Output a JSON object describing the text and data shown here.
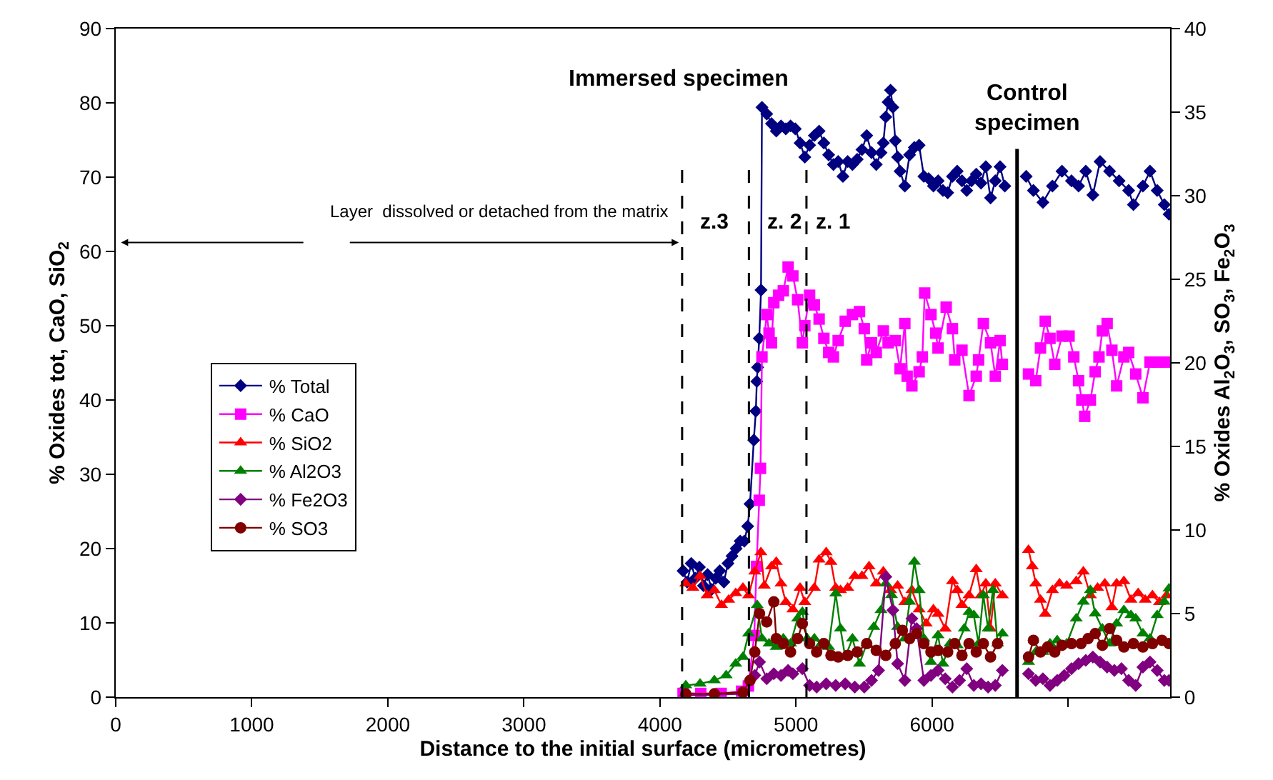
{
  "chart_data": {
    "type": "line",
    "xlabel": "Distance to the initial surface (micrometres)",
    "ylabel": "% Oxides tot, CaO, SiO$_{2}$",
    "y2label": "% Oxides Al$_{2}$O$_{3}$, SO$_{3}$, Fe$_{2}$O$_{3}$",
    "xlim": [
      0,
      7750
    ],
    "xticks": [
      0,
      1000,
      2000,
      3000,
      4000,
      5000,
      6000,
      {
        "value": 7000,
        "label": null
      }
    ],
    "ylim": [
      0,
      90
    ],
    "yticks": [
      0,
      10,
      20,
      30,
      40,
      50,
      60,
      70,
      80,
      90
    ],
    "y2lim": [
      0,
      40
    ],
    "y2ticks": [
      0,
      5,
      10,
      15,
      20,
      25,
      30,
      35,
      40
    ],
    "legend": "left",
    "line_style": "solid",
    "annotations": [
      "Layer  dissolved or detached from the matrix",
      "z.3",
      "z. 2",
      "z. 1",
      "Immersed specimen",
      "Control\nspecimen"
    ],
    "ref_lines": [
      {
        "axis": "x",
        "value": 4163,
        "line_style": "dashed",
        "color": "#000000"
      },
      {
        "axis": "x",
        "value": 4654,
        "line_style": "dashed",
        "color": "#000000"
      },
      {
        "axis": "x",
        "value": 5077,
        "line_style": "dashed",
        "color": "#000000"
      },
      {
        "axis": "x",
        "value": 6625,
        "line_style": "solid",
        "color": "#000000"
      }
    ],
    "series": [
      {
        "name": "% Total",
        "color": "#000080",
        "marker": "diamond",
        "x": [
          4170,
          4200,
          4230,
          4260,
          4290,
          4320,
          4350,
          4380,
          4410,
          4440,
          4470,
          4500,
          4530,
          4560,
          4590,
          4620,
          4645,
          4662,
          4690,
          4705,
          4712,
          4718,
          4730,
          4743,
          4750,
          4785,
          4820,
          4855,
          4890,
          4925,
          4960,
          4995,
          5030,
          5065,
          5100,
          5135,
          5170,
          5205,
          5240,
          5275,
          5310,
          5345,
          5380,
          5415,
          5450,
          5485,
          5520,
          5555,
          5590,
          5625,
          5642,
          5660,
          5677,
          5695,
          5712,
          5730,
          5747,
          5765,
          5800,
          5835,
          5870,
          5905,
          5940,
          5975,
          6010,
          6045,
          6080,
          6115,
          6150,
          6185,
          6220,
          6255,
          6290,
          6325,
          6360,
          6395,
          6430,
          6465,
          6500,
          6535,
          6600,
          6692,
          6745,
          6815,
          6885,
          6955,
          7025,
          7077,
          7130,
          7182,
          7235,
          7305,
          7375,
          7445,
          7480,
          7550,
          7602,
          7655,
          7707,
          7742
        ],
        "values": [
          17,
          15.5,
          18,
          16,
          17.5,
          15,
          16.5,
          14.5,
          16,
          17,
          15.5,
          18,
          19,
          20,
          21,
          21,
          23,
          26,
          34.6,
          38.5,
          42.5,
          44.4,
          48.3,
          54.8,
          79.4,
          78.5,
          77.2,
          76.2,
          76.9,
          76.5,
          76.9,
          76.5,
          74.6,
          72.7,
          74.3,
          75.6,
          76.2,
          74.6,
          73,
          71.7,
          72.1,
          70.1,
          72.1,
          71.7,
          72.4,
          73.7,
          75.6,
          73.3,
          71.7,
          73.3,
          74.6,
          78.1,
          80.1,
          81.7,
          79.4,
          74.9,
          72.7,
          70.8,
          68.8,
          73,
          74,
          74.3,
          70.1,
          69.8,
          68.8,
          69.5,
          68.2,
          67.9,
          70.1,
          70.8,
          69.5,
          68.2,
          69.5,
          70.4,
          69.2,
          71.4,
          67.2,
          69.5,
          71.4,
          68.8,
          null,
          70.1,
          68.2,
          66.6,
          68.8,
          70.8,
          69.5,
          68.8,
          70.8,
          67.6,
          72.1,
          70.8,
          69.5,
          68.2,
          66.3,
          68.8,
          70.8,
          68.2,
          66.3,
          65
        ]
      },
      {
        "name": "% CaO",
        "color": "#ff00ff",
        "marker": "square",
        "x": [
          4170,
          4300,
          4450,
          4600,
          4650,
          4693,
          4710,
          4730,
          4739,
          4750,
          4785,
          4802,
          4820,
          4837,
          4872,
          4907,
          4942,
          4977,
          5012,
          5047,
          5065,
          5100,
          5135,
          5170,
          5205,
          5240,
          5275,
          5310,
          5362,
          5415,
          5467,
          5502,
          5520,
          5555,
          5590,
          5642,
          5677,
          5730,
          5765,
          5800,
          5817,
          5852,
          5905,
          5929,
          5946,
          5992,
          6027,
          6044,
          6104,
          6150,
          6167,
          6220,
          6272,
          6325,
          6342,
          6377,
          6430,
          6465,
          6500,
          6517,
          6600,
          6709,
          6762,
          6797,
          6832,
          6867,
          6902,
          6955,
          7007,
          7042,
          7077,
          7101,
          7122,
          7164,
          7199,
          7227,
          7252,
          7287,
          7322,
          7357,
          7410,
          7445,
          7497,
          7550,
          7602,
          7655,
          7725
        ],
        "values": [
          0.5,
          0.5,
          0.5,
          0.8,
          1.5,
          8.3,
          17.6,
          26.5,
          30.8,
          45.8,
          51.5,
          49,
          47.7,
          53.1,
          54.1,
          54.7,
          57.9,
          56.7,
          53.5,
          47.7,
          50,
          54.1,
          52.8,
          50.9,
          48.3,
          46.4,
          45.8,
          48,
          50.6,
          51.5,
          51.9,
          49.6,
          45.4,
          47.7,
          46.4,
          49.3,
          47.7,
          48,
          44.2,
          50.3,
          43.2,
          41.9,
          43.8,
          45.8,
          54.4,
          51.5,
          49,
          47,
          52.5,
          49.6,
          45.4,
          46.7,
          40.6,
          43.2,
          45.4,
          50.3,
          47.7,
          43.2,
          48,
          44.8,
          null,
          43.5,
          42.6,
          47,
          50.6,
          48.3,
          44.8,
          48.6,
          48.6,
          45.8,
          42.6,
          40,
          37.8,
          40,
          43.8,
          45.8,
          49.3,
          50.3,
          46.7,
          41.9,
          45.8,
          46.4,
          43.5,
          40.3,
          45.1,
          45.1,
          45.1
        ]
      },
      {
        "name": "% SiO2",
        "color": "#ff0000",
        "marker": "triangle",
        "x": [
          4190,
          4242,
          4295,
          4347,
          4400,
          4452,
          4505,
          4557,
          4610,
          4652,
          4697,
          4742,
          4767,
          4820,
          4855,
          4890,
          4925,
          4977,
          5030,
          5065,
          5135,
          5170,
          5222,
          5257,
          5292,
          5327,
          5380,
          5432,
          5485,
          5537,
          5590,
          5642,
          5695,
          5747,
          5800,
          5852,
          5905,
          5957,
          6010,
          6044,
          6097,
          6150,
          6185,
          6220,
          6272,
          6325,
          6360,
          6395,
          6430,
          6465,
          6517,
          6600,
          6709,
          6737,
          6762,
          6797,
          6832,
          6885,
          6937,
          6990,
          7060,
          7112,
          7164,
          7217,
          7270,
          7322,
          7357,
          7410,
          7462,
          7515,
          7567,
          7620,
          7672,
          7725
        ],
        "values": [
          15.3,
          14.7,
          16.3,
          13.7,
          14.4,
          12.4,
          13.1,
          14,
          14.7,
          13.7,
          16.9,
          19.5,
          15,
          17.6,
          18.2,
          15.3,
          12.8,
          11.8,
          14.7,
          12.8,
          14.7,
          18.5,
          19.5,
          18.2,
          14.7,
          14.4,
          14.7,
          16.3,
          16.3,
          17.6,
          15.3,
          16.9,
          14.4,
          15,
          12.8,
          14.4,
          11.8,
          9.9,
          11.8,
          11.2,
          9.2,
          15.6,
          14.4,
          12.4,
          13.7,
          17.2,
          13.7,
          15.3,
          9.2,
          15.3,
          13.7,
          null,
          19.8,
          17.6,
          15.3,
          13.1,
          11.2,
          14.4,
          15.3,
          15,
          15.6,
          16.9,
          13.7,
          14.7,
          15.3,
          12.1,
          15.3,
          15.6,
          13.1,
          14,
          13.1,
          13.7,
          12.8,
          13.7
        ]
      },
      {
        "name": "% Al2O3",
        "color": "#008000",
        "marker": "triangle",
        "axis": "y2",
        "x": [
          4190,
          4295,
          4400,
          4487,
          4557,
          4610,
          4652,
          4715,
          4750,
          4802,
          4855,
          4907,
          4960,
          5012,
          5047,
          5082,
          5135,
          5187,
          5240,
          5292,
          5327,
          5362,
          5415,
          5467,
          5520,
          5572,
          5625,
          5660,
          5702,
          5747,
          5800,
          5835,
          5870,
          5905,
          5940,
          5992,
          6044,
          6080,
          6132,
          6185,
          6237,
          6272,
          6307,
          6342,
          6377,
          6412,
          6447,
          6482,
          6517,
          6600,
          6709,
          6762,
          6815,
          6867,
          6920,
          6990,
          7060,
          7112,
          7164,
          7199,
          7252,
          7305,
          7357,
          7410,
          7462,
          7497,
          7550,
          7602,
          7655,
          7707,
          7742
        ],
        "values": [
          0.7,
          0.8,
          1,
          1.3,
          2,
          2.4,
          3.8,
          5.5,
          3.5,
          3.2,
          3,
          3.5,
          3.2,
          4.7,
          5.1,
          3.5,
          3.5,
          3.2,
          3,
          6.2,
          4.1,
          2.4,
          3.5,
          2,
          3.2,
          4.2,
          5.2,
          6.8,
          6.1,
          4.2,
          3.5,
          5.7,
          8.1,
          6.4,
          3.5,
          2.1,
          3.7,
          2,
          3.2,
          3.1,
          4.1,
          5.1,
          4.9,
          3.2,
          6.1,
          4.1,
          6.4,
          3.2,
          3.8,
          null,
          2.1,
          2.7,
          2.7,
          3.2,
          3.4,
          3.2,
          4.7,
          5.7,
          6.4,
          5,
          4.1,
          3.2,
          4.4,
          5.2,
          4.9,
          4.7,
          3.8,
          3.5,
          4.9,
          5.7,
          6.5
        ]
      },
      {
        "name": "% Fe2O3",
        "color": "#800080",
        "marker": "diamond",
        "axis": "y2",
        "x": [
          4190,
          4610,
          4662,
          4697,
          4732,
          4785,
          4837,
          4890,
          4942,
          4977,
          5047,
          5100,
          5152,
          5222,
          5292,
          5362,
          5432,
          5502,
          5555,
          5607,
          5660,
          5712,
          5747,
          5800,
          5852,
          5887,
          5940,
          5992,
          6044,
          6097,
          6150,
          6202,
          6255,
          6307,
          6360,
          6412,
          6465,
          6517,
          6600,
          6709,
          6762,
          6815,
          6867,
          6920,
          6972,
          7025,
          7077,
          7130,
          7182,
          7235,
          7287,
          7340,
          7392,
          7445,
          7497,
          7550,
          7602,
          7655,
          7707,
          7742
        ],
        "values": [
          0.1,
          0.2,
          null,
          1.3,
          2.1,
          1.1,
          1.4,
          1.3,
          1.6,
          1.4,
          1.7,
          0.7,
          0.6,
          0.8,
          0.7,
          0.8,
          0.6,
          0.6,
          1,
          1.6,
          7.2,
          5.2,
          2,
          1,
          4.7,
          4.1,
          1,
          1.3,
          1.6,
          1.1,
          0.6,
          1,
          1.7,
          0.7,
          0.8,
          0.6,
          0.7,
          1.6,
          null,
          1.4,
          1,
          1.1,
          0.7,
          1,
          1.3,
          1.7,
          2,
          2.2,
          2.4,
          2.1,
          1.8,
          1.6,
          1.7,
          1,
          0.7,
          1.8,
          2.1,
          1.6,
          1,
          1
        ]
      },
      {
        "name": "% SO3",
        "color": "#800000",
        "marker": "circle",
        "axis": "y2",
        "x": [
          4190,
          4400,
          4610,
          4662,
          4697,
          4732,
          4785,
          4837,
          4855,
          4907,
          4960,
          5012,
          5047,
          5100,
          5152,
          5205,
          5257,
          5310,
          5380,
          5450,
          5520,
          5590,
          5660,
          5730,
          5782,
          5835,
          5887,
          5940,
          5992,
          6044,
          6115,
          6167,
          6220,
          6272,
          6325,
          6377,
          6430,
          6482,
          6600,
          6709,
          6745,
          6797,
          6850,
          6902,
          6955,
          7025,
          7095,
          7147,
          7199,
          7252,
          7305,
          7357,
          7410,
          7480,
          7550,
          7620,
          7690,
          7742
        ],
        "values": [
          0.2,
          0.2,
          0.3,
          1,
          2.7,
          5,
          4.5,
          5.7,
          3.5,
          3.2,
          2.7,
          3.5,
          4.4,
          3.2,
          2.7,
          3.2,
          2.5,
          2.4,
          2.5,
          2.7,
          3.2,
          2.8,
          2.5,
          3.2,
          4,
          3.5,
          3.8,
          3.2,
          2.7,
          2.8,
          2.7,
          3.2,
          2.5,
          3.2,
          2.7,
          3.2,
          2.4,
          3.2,
          null,
          2.4,
          3.4,
          2.7,
          3,
          2.7,
          3.1,
          3.2,
          3.2,
          3.5,
          3.8,
          3.1,
          4.1,
          3.4,
          3,
          3.2,
          3,
          3.2,
          3.4,
          3.2
        ]
      }
    ]
  }
}
